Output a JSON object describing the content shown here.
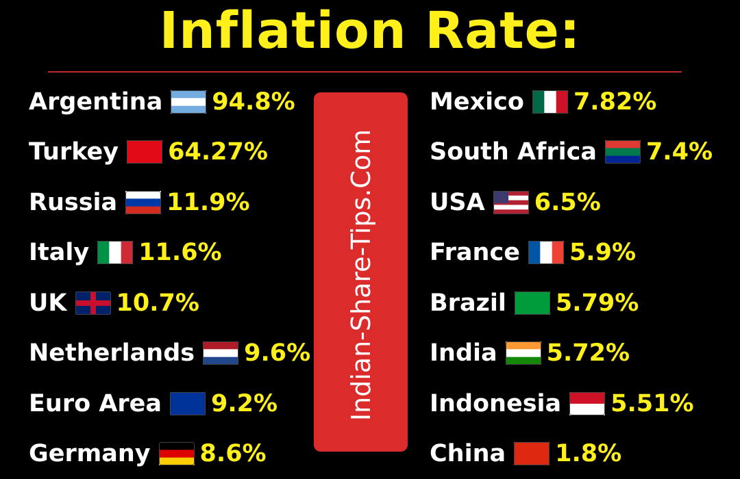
{
  "header": {
    "title": "Inflation Rate:"
  },
  "watermark": "Indian-Share-Tips.Com",
  "left": [
    {
      "country": "Argentina",
      "rate": "94.8%"
    },
    {
      "country": "Turkey",
      "rate": "64.27%"
    },
    {
      "country": "Russia",
      "rate": "11.9%"
    },
    {
      "country": "Italy",
      "rate": "11.6%"
    },
    {
      "country": "UK",
      "rate": "10.7%"
    },
    {
      "country": "Netherlands",
      "rate": "9.6%"
    },
    {
      "country": "Euro Area",
      "rate": "9.2%"
    },
    {
      "country": "Germany",
      "rate": "8.6%"
    }
  ],
  "right": [
    {
      "country": "Mexico",
      "rate": "7.82%"
    },
    {
      "country": "South Africa",
      "rate": "7.4%"
    },
    {
      "country": "USA",
      "rate": "6.5%"
    },
    {
      "country": "France",
      "rate": "5.9%"
    },
    {
      "country": "Brazil",
      "rate": "5.79%"
    },
    {
      "country": "India",
      "rate": "5.72%"
    },
    {
      "country": "Indonesia",
      "rate": "5.51%"
    },
    {
      "country": "China",
      "rate": "1.8%"
    }
  ]
}
